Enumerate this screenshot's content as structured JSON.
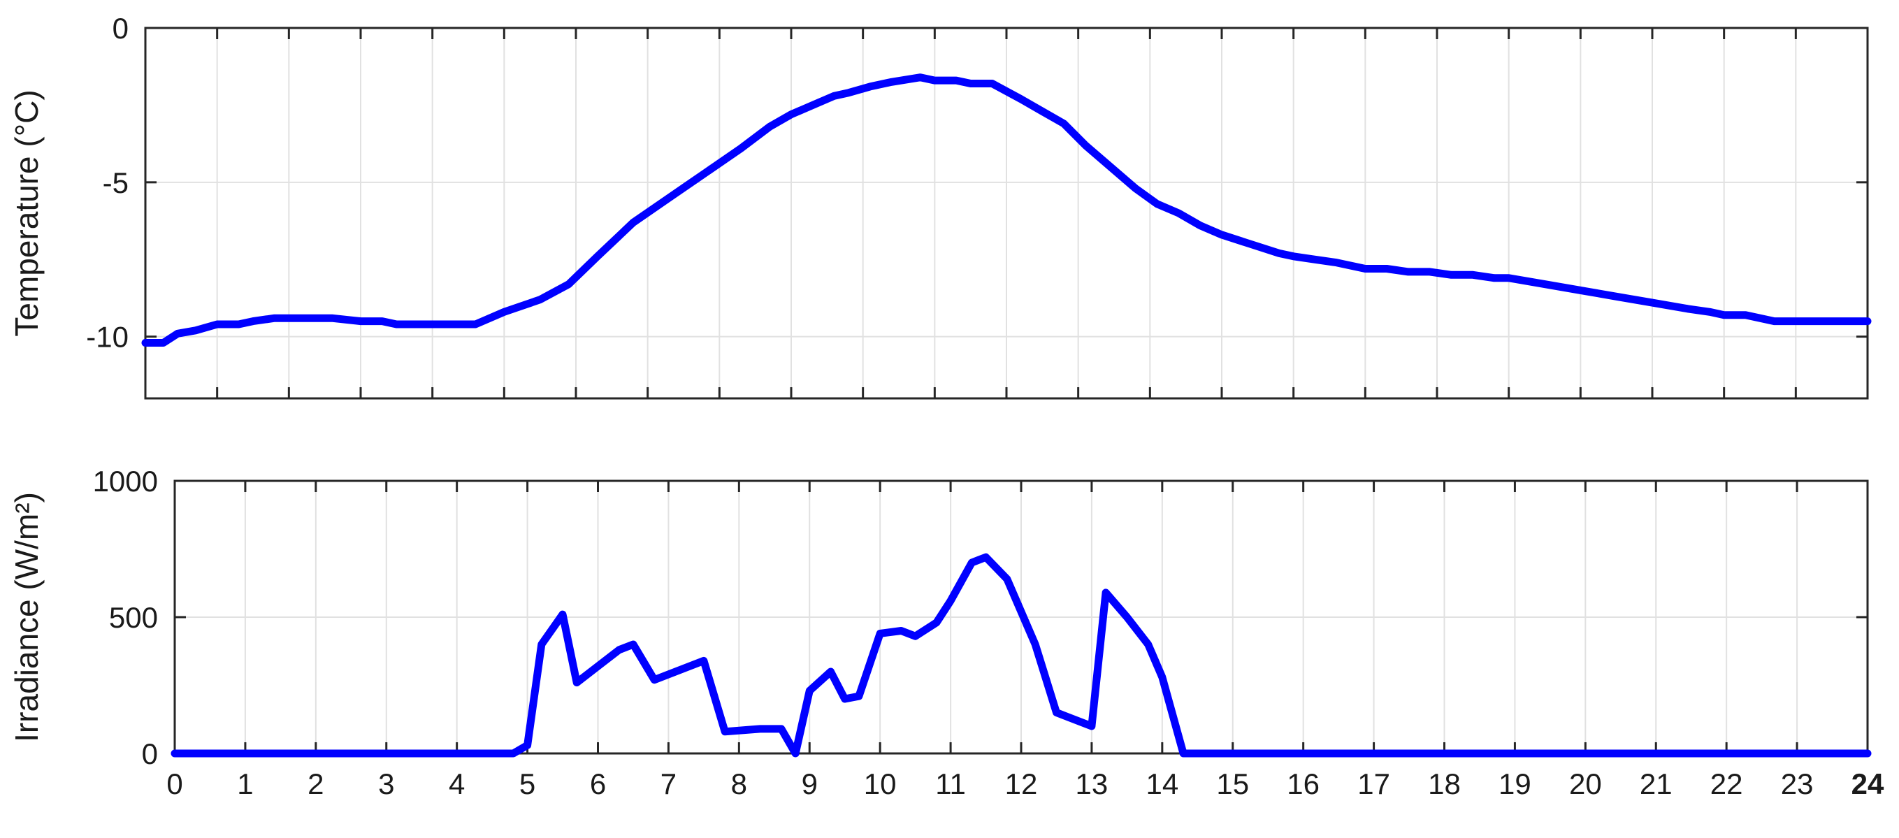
{
  "chart_data": [
    {
      "type": "line",
      "title": "",
      "xlabel": "",
      "ylabel": "Temperature (°C)",
      "xlim": [
        0,
        24
      ],
      "ylim": [
        -12,
        0
      ],
      "x_ticks": [
        "0",
        "1",
        "2",
        "3",
        "4",
        "5",
        "6",
        "7",
        "8",
        "9",
        "10",
        "11",
        "12",
        "13",
        "14",
        "15",
        "16",
        "17",
        "18",
        "19",
        "20",
        "21",
        "22",
        "23",
        "24"
      ],
      "y_ticks": [
        {
          "value": -10,
          "label": "-10"
        },
        {
          "value": -5,
          "label": "-5"
        },
        {
          "value": 0,
          "label": "0"
        }
      ],
      "x_tick_labels_shown": false,
      "grid": true,
      "series": [
        {
          "color": "#0000ff",
          "points": [
            [
              0,
              -10.2
            ],
            [
              0.25,
              -10.2
            ],
            [
              0.45,
              -9.9
            ],
            [
              0.7,
              -9.8
            ],
            [
              1,
              -9.6
            ],
            [
              1.3,
              -9.6
            ],
            [
              1.5,
              -9.5
            ],
            [
              1.8,
              -9.4
            ],
            [
              2.2,
              -9.4
            ],
            [
              2.6,
              -9.4
            ],
            [
              3,
              -9.5
            ],
            [
              3.3,
              -9.5
            ],
            [
              3.5,
              -9.6
            ],
            [
              3.8,
              -9.6
            ],
            [
              4.2,
              -9.6
            ],
            [
              4.6,
              -9.6
            ],
            [
              5,
              -9.2
            ],
            [
              5.5,
              -8.8
            ],
            [
              5.9,
              -8.3
            ],
            [
              6.3,
              -7.4
            ],
            [
              6.8,
              -6.3
            ],
            [
              7.3,
              -5.5
            ],
            [
              7.8,
              -4.7
            ],
            [
              8.3,
              -3.9
            ],
            [
              8.7,
              -3.2
            ],
            [
              9,
              -2.8
            ],
            [
              9.3,
              -2.5
            ],
            [
              9.6,
              -2.2
            ],
            [
              9.8,
              -2.1
            ],
            [
              10.1,
              -1.9
            ],
            [
              10.4,
              -1.75
            ],
            [
              10.8,
              -1.6
            ],
            [
              11,
              -1.7
            ],
            [
              11.3,
              -1.7
            ],
            [
              11.5,
              -1.8
            ],
            [
              11.8,
              -1.8
            ],
            [
              12.2,
              -2.3
            ],
            [
              12.5,
              -2.7
            ],
            [
              12.8,
              -3.1
            ],
            [
              13.1,
              -3.8
            ],
            [
              13.5,
              -4.6
            ],
            [
              13.8,
              -5.2
            ],
            [
              14.1,
              -5.7
            ],
            [
              14.4,
              -6.0
            ],
            [
              14.7,
              -6.4
            ],
            [
              15,
              -6.7
            ],
            [
              15.4,
              -7.0
            ],
            [
              15.8,
              -7.3
            ],
            [
              16,
              -7.4
            ],
            [
              16.3,
              -7.5
            ],
            [
              16.6,
              -7.6
            ],
            [
              17,
              -7.8
            ],
            [
              17.3,
              -7.8
            ],
            [
              17.6,
              -7.9
            ],
            [
              17.9,
              -7.9
            ],
            [
              18.2,
              -8.0
            ],
            [
              18.5,
              -8.0
            ],
            [
              18.8,
              -8.1
            ],
            [
              19,
              -8.1
            ],
            [
              19.5,
              -8.3
            ],
            [
              20,
              -8.5
            ],
            [
              20.5,
              -8.7
            ],
            [
              21,
              -8.9
            ],
            [
              21.5,
              -9.1
            ],
            [
              21.8,
              -9.2
            ],
            [
              22,
              -9.3
            ],
            [
              22.3,
              -9.3
            ],
            [
              22.7,
              -9.5
            ],
            [
              23,
              -9.5
            ],
            [
              23.5,
              -9.5
            ],
            [
              24,
              -9.5
            ]
          ]
        }
      ]
    },
    {
      "type": "line",
      "title": "",
      "xlabel": "",
      "ylabel": "Irradiance (W/m²)",
      "xlim": [
        0,
        24
      ],
      "ylim": [
        0,
        1000
      ],
      "x_ticks": [
        "0",
        "1",
        "2",
        "3",
        "4",
        "5",
        "6",
        "7",
        "8",
        "9",
        "10",
        "11",
        "12",
        "13",
        "14",
        "15",
        "16",
        "17",
        "18",
        "19",
        "20",
        "21",
        "22",
        "23",
        "24"
      ],
      "y_ticks": [
        {
          "value": 0,
          "label": "0"
        },
        {
          "value": 500,
          "label": "500"
        },
        {
          "value": 1000,
          "label": "1000"
        }
      ],
      "x_tick_labels_shown": true,
      "grid": true,
      "series": [
        {
          "color": "#0000ff",
          "points": [
            [
              0,
              0
            ],
            [
              4.8,
              0
            ],
            [
              5,
              30
            ],
            [
              5.2,
              400
            ],
            [
              5.5,
              510
            ],
            [
              5.7,
              260
            ],
            [
              6,
              320
            ],
            [
              6.3,
              380
            ],
            [
              6.5,
              400
            ],
            [
              6.8,
              270
            ],
            [
              7.1,
              300
            ],
            [
              7.5,
              340
            ],
            [
              7.8,
              80
            ],
            [
              8.3,
              90
            ],
            [
              8.6,
              90
            ],
            [
              8.8,
              0
            ],
            [
              9,
              230
            ],
            [
              9.3,
              300
            ],
            [
              9.5,
              200
            ],
            [
              9.7,
              210
            ],
            [
              10,
              440
            ],
            [
              10.3,
              450
            ],
            [
              10.5,
              430
            ],
            [
              10.8,
              480
            ],
            [
              11,
              560
            ],
            [
              11.3,
              700
            ],
            [
              11.5,
              720
            ],
            [
              11.8,
              640
            ],
            [
              12.2,
              400
            ],
            [
              12.5,
              150
            ],
            [
              13,
              100
            ],
            [
              13.2,
              590
            ],
            [
              13.5,
              500
            ],
            [
              13.8,
              400
            ],
            [
              14,
              280
            ],
            [
              14.3,
              0
            ],
            [
              24,
              0
            ]
          ]
        }
      ]
    }
  ]
}
